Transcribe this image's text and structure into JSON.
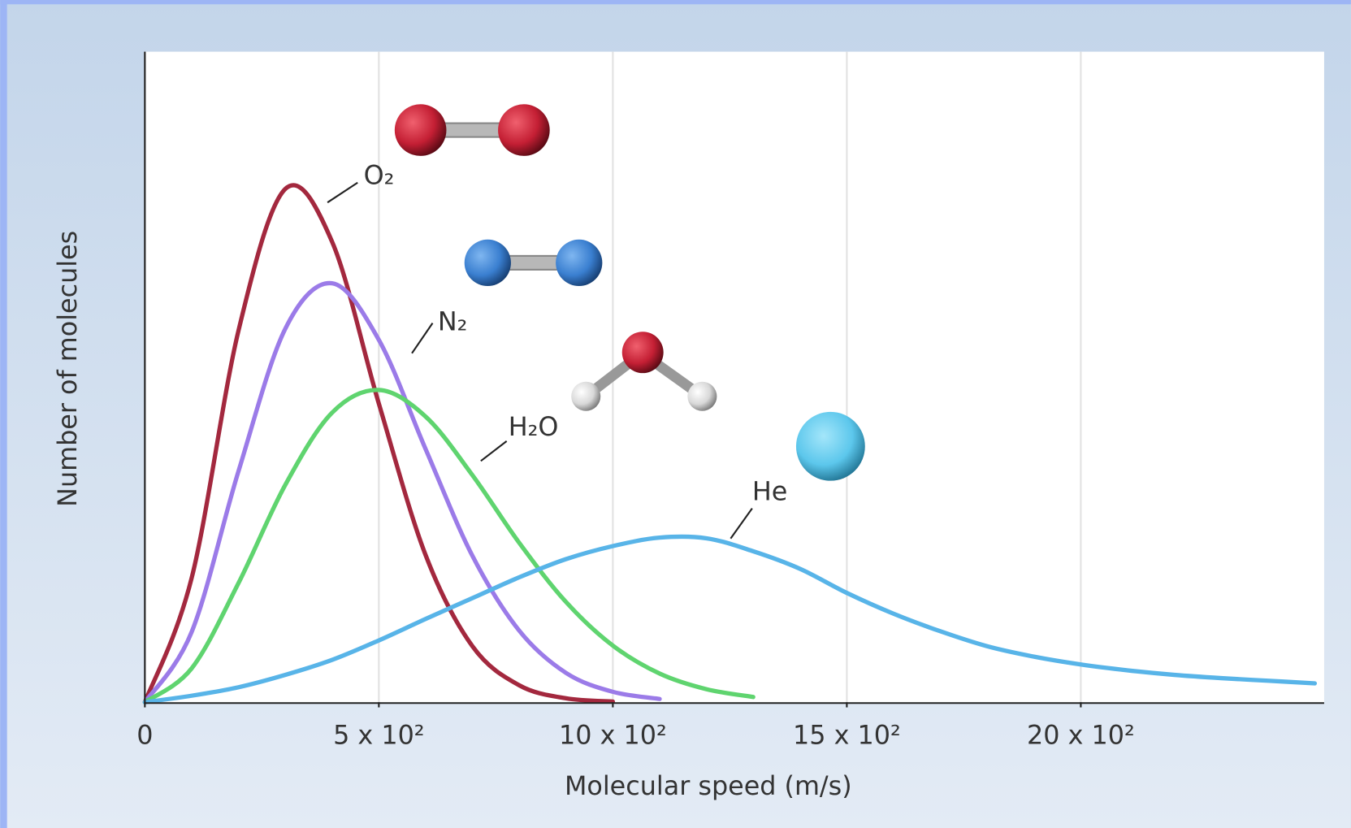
{
  "chart_data": {
    "type": "line",
    "x_label": "Molecular speed (m/s)",
    "y_label": "Number of molecules",
    "x": [
      0,
      100,
      200,
      300,
      400,
      500,
      600,
      700,
      800,
      900,
      1000,
      1100,
      1200,
      1300,
      1400,
      1500,
      1600,
      1700,
      1800,
      1900,
      2000,
      2100,
      2200,
      2300,
      2400,
      2500
    ],
    "series": [
      {
        "name": "O₂",
        "color": "#a3283e",
        "values": [
          0,
          19.1,
          57.1,
          78.9,
          70.8,
          45.9,
          22.6,
          8.6,
          2.6,
          0.6,
          0.1,
          null,
          null,
          null,
          null,
          null,
          null,
          null,
          null,
          null,
          null,
          null,
          null,
          null,
          null,
          null
        ]
      },
      {
        "name": "N₂",
        "color": "#9b7be8",
        "values": [
          0,
          10.8,
          35.5,
          57.4,
          64.4,
          55.7,
          38.9,
          22.5,
          11.0,
          4.5,
          1.6,
          0.5,
          null,
          null,
          null,
          null,
          null,
          null,
          null,
          null,
          null,
          null,
          null,
          null,
          null,
          null
        ]
      },
      {
        "name": "H₂O",
        "color": "#5fd46f",
        "values": [
          0,
          5.2,
          18.3,
          33.4,
          44.5,
          48.0,
          43.9,
          34.9,
          24.5,
          15.4,
          8.7,
          4.4,
          2.0,
          0.8,
          null,
          null,
          null,
          null,
          null,
          null,
          null,
          null,
          null,
          null,
          null,
          null
        ]
      },
      {
        "name": "He",
        "color": "#58b4e8",
        "values": [
          0,
          1.0,
          2.3,
          4.2,
          6.5,
          9.5,
          12.8,
          16.0,
          19.2,
          22.0,
          24.0,
          25.3,
          25.2,
          23.2,
          20.5,
          16.8,
          13.6,
          10.9,
          8.6,
          7.0,
          5.8,
          4.9,
          4.2,
          3.7,
          3.3,
          2.9
        ]
      }
    ],
    "xlim": [
      0,
      2520
    ],
    "ylim": [
      0,
      100
    ],
    "xticks": [
      0,
      {
        "value": 500,
        "label": "5 x 10²"
      },
      {
        "value": 1000,
        "label": "10 x 10²"
      },
      {
        "value": 1500,
        "label": "15 x 10²"
      },
      {
        "value": 2000,
        "label": "20 x 10²"
      }
    ],
    "grid": true
  }
}
